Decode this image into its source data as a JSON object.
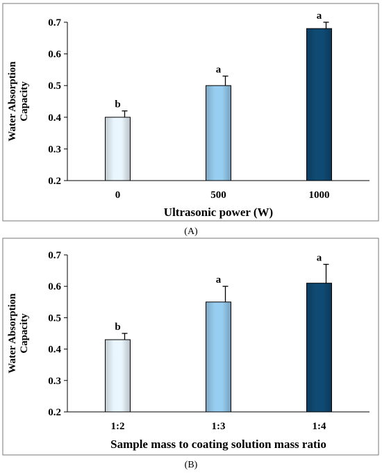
{
  "chart_data": [
    {
      "type": "bar",
      "panel_label": "(A)",
      "categories": [
        "0",
        "500",
        "1000"
      ],
      "values": [
        0.4,
        0.5,
        0.68
      ],
      "errors": [
        0.02,
        0.03,
        0.02
      ],
      "significance": [
        "b",
        "a",
        "a"
      ],
      "colors": [
        "#eaf6fd",
        "#97cdf0",
        "#0f4a73"
      ],
      "xlabel": "Ultrasonic power (W)",
      "ylabel_lines": [
        "Water Absorption",
        "Capacity"
      ],
      "ylim": [
        0.2,
        0.7
      ],
      "yticks": [
        "0.2",
        "0.3",
        "0.4",
        "0.5",
        "0.6",
        "0.7"
      ],
      "grid": false
    },
    {
      "type": "bar",
      "panel_label": "(B)",
      "categories": [
        "1:2",
        "1:3",
        "1:4"
      ],
      "values": [
        0.43,
        0.55,
        0.61
      ],
      "errors": [
        0.02,
        0.05,
        0.06
      ],
      "significance": [
        "b",
        "a",
        "a"
      ],
      "colors": [
        "#eaf6fd",
        "#97cdf0",
        "#0f4a73"
      ],
      "xlabel": "Sample mass to coating solution mass ratio",
      "ylabel_lines": [
        "Water Absorption",
        "Capacity"
      ],
      "ylim": [
        0.2,
        0.7
      ],
      "yticks": [
        "0.2",
        "0.3",
        "0.4",
        "0.5",
        "0.6",
        "0.7"
      ],
      "grid": false
    }
  ]
}
